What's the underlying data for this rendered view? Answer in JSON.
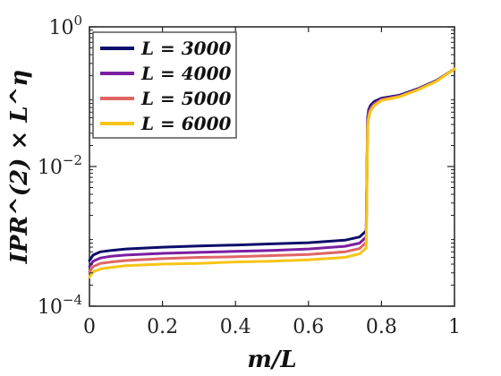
{
  "chart_data": {
    "type": "line",
    "title": "",
    "xlabel": "m/L",
    "ylabel": "IPR^(2) × L^η",
    "xlim": [
      0,
      1
    ],
    "ylim": [
      0.0001,
      1
    ],
    "yscale": "log",
    "grid": false,
    "legend_position": "top-left",
    "x_ticks": [
      {
        "value": 0,
        "label": "0"
      },
      {
        "value": 0.2,
        "label": "0.2"
      },
      {
        "value": 0.4,
        "label": "0.4"
      },
      {
        "value": 0.6,
        "label": "0.6"
      },
      {
        "value": 0.8,
        "label": "0.8"
      },
      {
        "value": 1,
        "label": "1"
      }
    ],
    "y_ticks": [
      {
        "value": 0.0001,
        "base": "10",
        "exp": "−4"
      },
      {
        "value": 0.01,
        "base": "10",
        "exp": "−2"
      },
      {
        "value": 1,
        "base": "10",
        "exp": "0"
      }
    ],
    "series": [
      {
        "name": "L = 3000",
        "legend_label": "L = 3000",
        "color": "#0d0d6b",
        "x": [
          0,
          0.01,
          0.03,
          0.06,
          0.1,
          0.2,
          0.3,
          0.4,
          0.5,
          0.6,
          0.7,
          0.74,
          0.758,
          0.762,
          0.765,
          0.77,
          0.78,
          0.8,
          0.85,
          0.9,
          0.95,
          1.0
        ],
        "y": [
          0.00045,
          0.00054,
          0.0006,
          0.00063,
          0.00066,
          0.0007,
          0.00073,
          0.00075,
          0.00078,
          0.00081,
          0.00088,
          0.00098,
          0.0012,
          0.05,
          0.065,
          0.075,
          0.085,
          0.095,
          0.105,
          0.13,
          0.17,
          0.25
        ]
      },
      {
        "name": "L = 4000",
        "legend_label": "L = 4000",
        "color": "#7a1fa2",
        "x": [
          0,
          0.01,
          0.03,
          0.06,
          0.1,
          0.2,
          0.3,
          0.4,
          0.5,
          0.6,
          0.7,
          0.74,
          0.758,
          0.762,
          0.765,
          0.77,
          0.78,
          0.8,
          0.85,
          0.9,
          0.95,
          1.0
        ],
        "y": [
          0.00037,
          0.00044,
          0.00049,
          0.00052,
          0.00054,
          0.00057,
          0.00059,
          0.00061,
          0.00063,
          0.00066,
          0.00072,
          0.0008,
          0.00098,
          0.045,
          0.06,
          0.07,
          0.08,
          0.092,
          0.103,
          0.128,
          0.168,
          0.25
        ]
      },
      {
        "name": "L = 5000",
        "legend_label": "L = 5000",
        "color": "#e06666",
        "x": [
          0,
          0.01,
          0.03,
          0.06,
          0.1,
          0.2,
          0.3,
          0.4,
          0.5,
          0.6,
          0.7,
          0.74,
          0.758,
          0.762,
          0.765,
          0.77,
          0.78,
          0.8,
          0.85,
          0.9,
          0.95,
          1.0
        ],
        "y": [
          0.00031,
          0.00037,
          0.00041,
          0.00043,
          0.00045,
          0.00048,
          0.0005,
          0.00051,
          0.00053,
          0.00055,
          0.0006,
          0.00067,
          0.00082,
          0.04,
          0.055,
          0.066,
          0.077,
          0.09,
          0.101,
          0.126,
          0.166,
          0.25
        ]
      },
      {
        "name": "L = 6000",
        "legend_label": "L = 6000",
        "color": "#f5c518",
        "x": [
          0,
          0.01,
          0.03,
          0.06,
          0.1,
          0.2,
          0.3,
          0.4,
          0.5,
          0.6,
          0.7,
          0.74,
          0.758,
          0.762,
          0.765,
          0.77,
          0.78,
          0.8,
          0.85,
          0.9,
          0.95,
          1.0
        ],
        "y": [
          0.00026,
          0.00031,
          0.00034,
          0.00036,
          0.00038,
          0.0004,
          0.00041,
          0.00043,
          0.00044,
          0.00046,
          0.0005,
          0.00056,
          0.00068,
          0.035,
          0.05,
          0.062,
          0.074,
          0.088,
          0.1,
          0.125,
          0.165,
          0.25
        ]
      }
    ]
  }
}
